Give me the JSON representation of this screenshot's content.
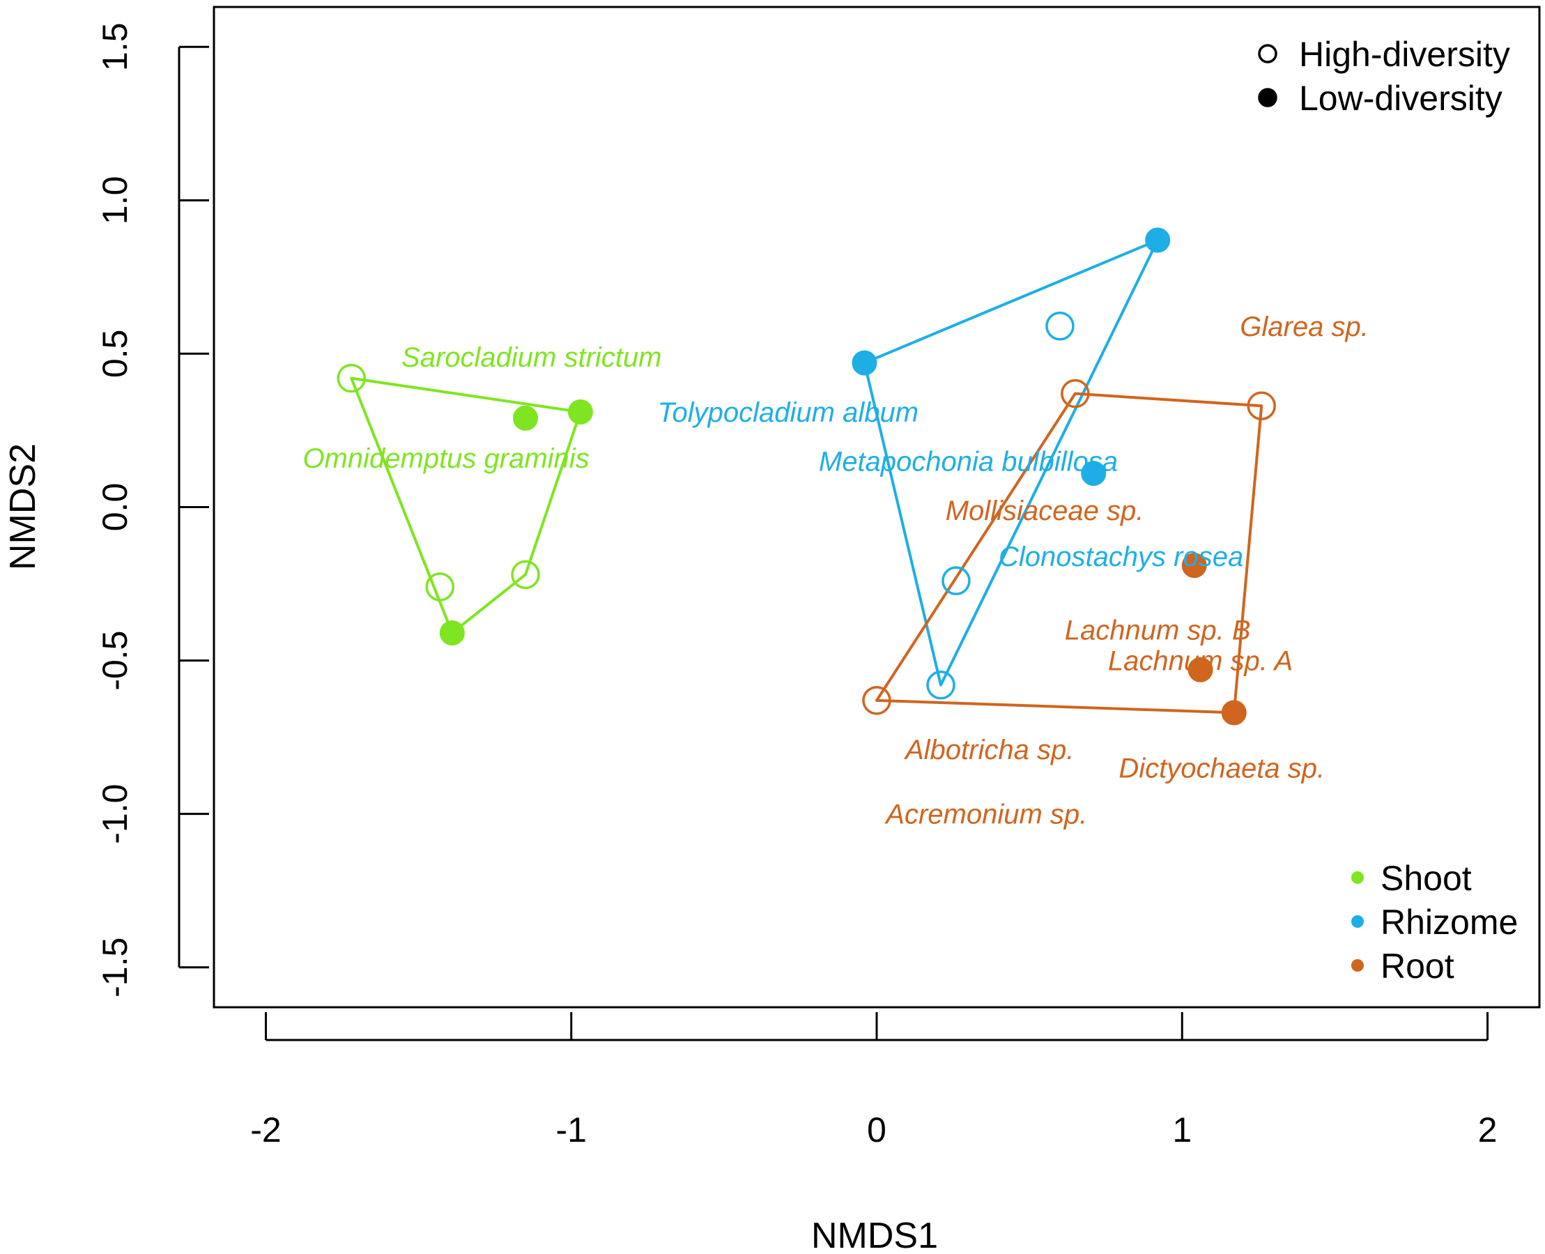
{
  "chart_data": {
    "type": "scatter",
    "xlabel": "NMDS1",
    "ylabel": "NMDS2",
    "xlim": [
      -2.17,
      2.17
    ],
    "ylim": [
      -1.63,
      1.63
    ],
    "x_ticks": [
      -2,
      -1,
      0,
      1,
      2
    ],
    "x_tick_labels": [
      "-2",
      "-1",
      "0",
      "1",
      "2"
    ],
    "y_ticks": [
      -1.5,
      -1.0,
      -0.5,
      0.0,
      0.5,
      1.0,
      1.5
    ],
    "y_tick_labels": [
      "-1.5",
      "-1.0",
      "-0.5",
      "0.0",
      "0.5",
      "1.0",
      "1.5"
    ],
    "colors": {
      "Shoot": "#7fe520",
      "Rhizome": "#1eaee6",
      "Root": "#d0651e"
    },
    "series": [
      {
        "name": "Shoot",
        "points": [
          {
            "x": -1.72,
            "y": 0.42,
            "diversity": "High-diversity"
          },
          {
            "x": -1.15,
            "y": 0.29,
            "diversity": "Low-diversity"
          },
          {
            "x": -0.97,
            "y": 0.31,
            "diversity": "Low-diversity"
          },
          {
            "x": -1.43,
            "y": -0.26,
            "diversity": "High-diversity"
          },
          {
            "x": -1.39,
            "y": -0.41,
            "diversity": "Low-diversity"
          },
          {
            "x": -1.15,
            "y": -0.22,
            "diversity": "High-diversity"
          }
        ],
        "hull": [
          [
            -1.72,
            0.42
          ],
          [
            -0.97,
            0.31
          ],
          [
            -1.15,
            -0.22
          ],
          [
            -1.39,
            -0.41
          ]
        ],
        "species": [
          {
            "name": "Sarocladium strictum",
            "x": -1.13,
            "y": 0.49
          },
          {
            "name": "Omnidemptus graminis",
            "x": -1.41,
            "y": 0.16
          }
        ]
      },
      {
        "name": "Rhizome",
        "points": [
          {
            "x": -0.04,
            "y": 0.47,
            "diversity": "Low-diversity"
          },
          {
            "x": 0.92,
            "y": 0.87,
            "diversity": "Low-diversity"
          },
          {
            "x": 0.6,
            "y": 0.59,
            "diversity": "High-diversity"
          },
          {
            "x": 0.71,
            "y": 0.11,
            "diversity": "Low-diversity"
          },
          {
            "x": 0.26,
            "y": -0.24,
            "diversity": "High-diversity"
          },
          {
            "x": 0.21,
            "y": -0.58,
            "diversity": "High-diversity"
          }
        ],
        "hull": [
          [
            -0.04,
            0.47
          ],
          [
            0.92,
            0.87
          ],
          [
            0.21,
            -0.58
          ]
        ],
        "species": [
          {
            "name": "Tolypocladium album",
            "x": -0.29,
            "y": 0.31
          },
          {
            "name": "Metapochonia bulbillosa",
            "x": 0.3,
            "y": 0.15
          },
          {
            "name": "Clonostachys rosea",
            "x": 0.8,
            "y": -0.16
          }
        ]
      },
      {
        "name": "Root",
        "points": [
          {
            "x": 0.65,
            "y": 0.37,
            "diversity": "High-diversity"
          },
          {
            "x": 1.26,
            "y": 0.33,
            "diversity": "High-diversity"
          },
          {
            "x": 1.04,
            "y": -0.19,
            "diversity": "Low-diversity"
          },
          {
            "x": 1.06,
            "y": -0.53,
            "diversity": "Low-diversity"
          },
          {
            "x": 1.17,
            "y": -0.67,
            "diversity": "Low-diversity"
          },
          {
            "x": 0.0,
            "y": -0.63,
            "diversity": "High-diversity"
          }
        ],
        "hull": [
          [
            0.0,
            -0.63
          ],
          [
            0.65,
            0.37
          ],
          [
            1.26,
            0.33
          ],
          [
            1.17,
            -0.67
          ]
        ],
        "species": [
          {
            "name": "Glarea sp.",
            "x": 1.4,
            "y": 0.59
          },
          {
            "name": "Mollisiaceae sp.",
            "x": 0.55,
            "y": -0.01
          },
          {
            "name": "Lachnum sp. B",
            "x": 0.92,
            "y": -0.4
          },
          {
            "name": "Lachnum sp. A",
            "x": 1.06,
            "y": -0.5
          },
          {
            "name": "Albotricha sp.",
            "x": 0.37,
            "y": -0.79
          },
          {
            "name": "Dictyochaeta sp.",
            "x": 1.13,
            "y": -0.85
          },
          {
            "name": "Acremonium sp.",
            "x": 0.36,
            "y": -1.0
          }
        ]
      }
    ],
    "legend_diversity": {
      "position": "top-right",
      "entries": [
        {
          "label": "High-diversity",
          "marker": "open-circle"
        },
        {
          "label": "Low-diversity",
          "marker": "filled-circle"
        }
      ]
    },
    "legend_group": {
      "position": "bottom-right",
      "entries": [
        {
          "label": "Shoot",
          "color": "#7fe520"
        },
        {
          "label": "Rhizome",
          "color": "#1eaee6"
        },
        {
          "label": "Root",
          "color": "#d0651e"
        }
      ]
    }
  }
}
